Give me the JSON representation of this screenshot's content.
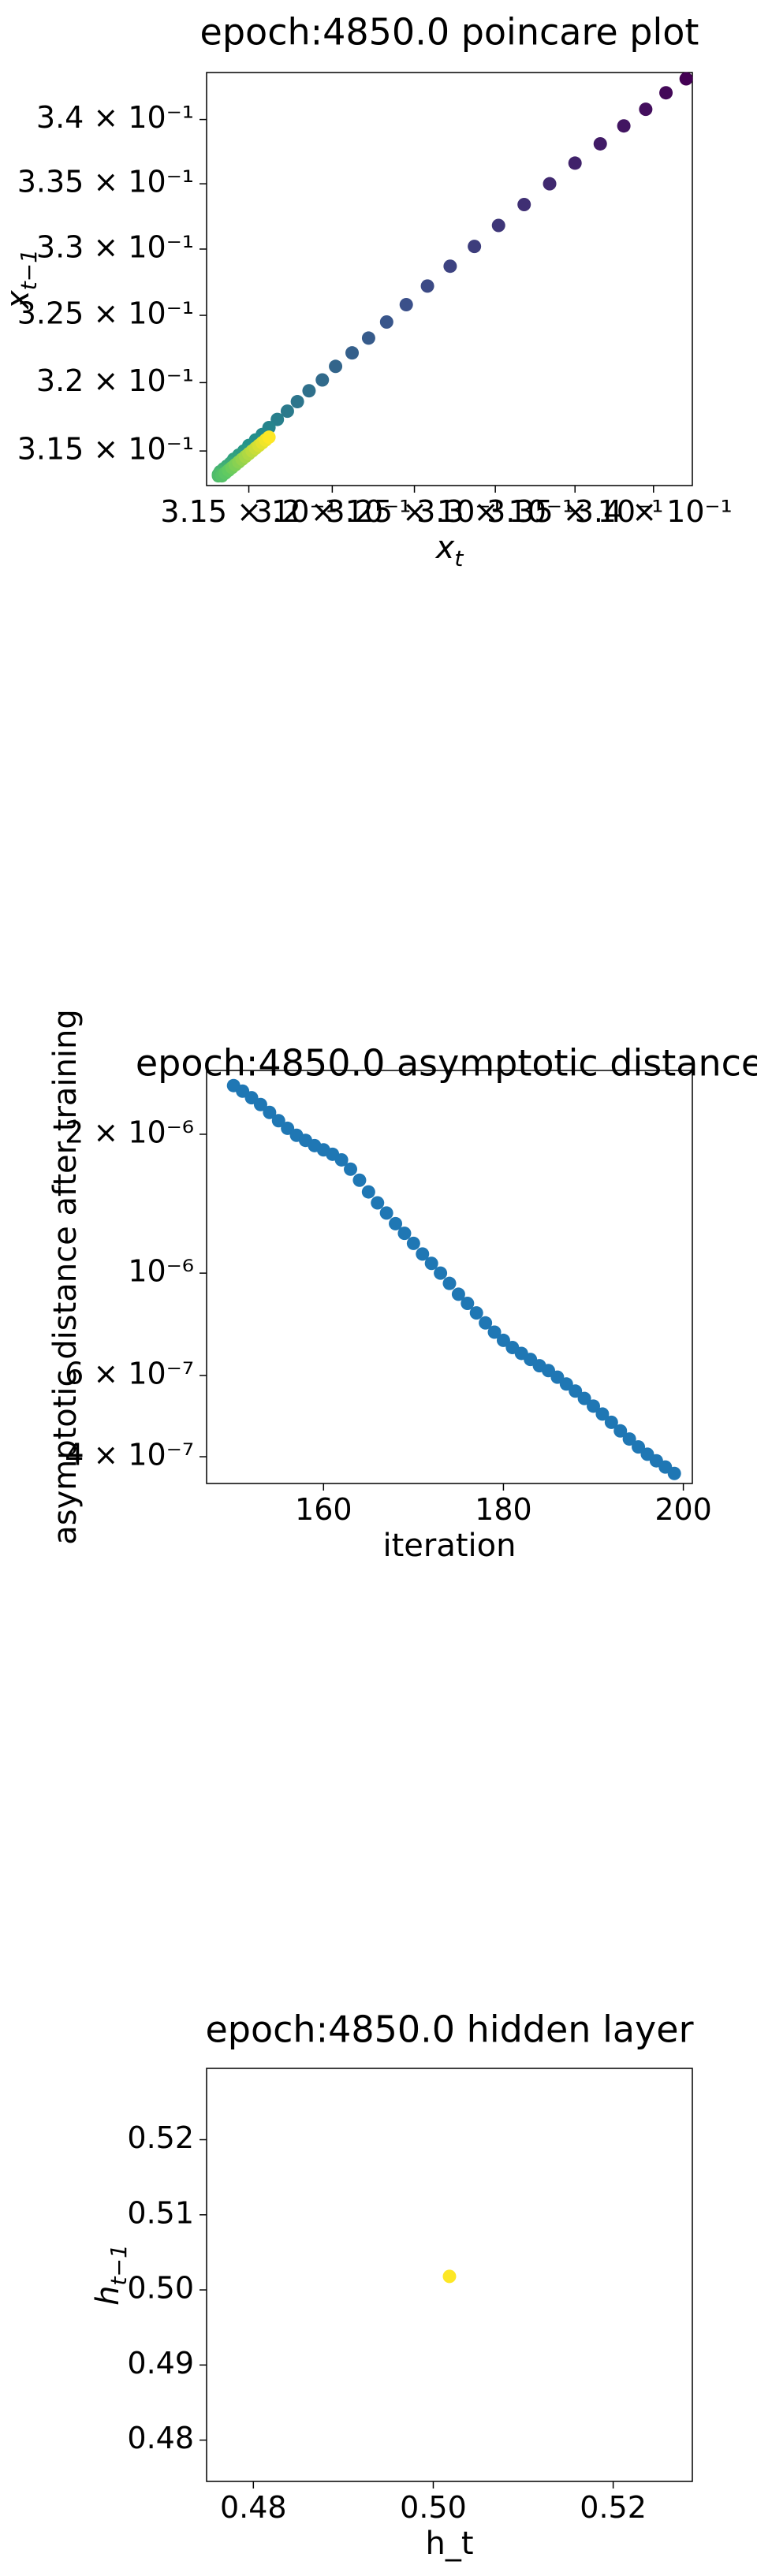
{
  "chart_data": [
    {
      "type": "scatter",
      "title": "epoch:4850.0 poincare plot",
      "xlabel": "x",
      "xlabel_sub": "t",
      "ylabel": "x",
      "ylabel_sub": "t−1",
      "x_scale": "log",
      "y_scale": "log",
      "xlim": [
        0.3125,
        0.3425
      ],
      "ylim": [
        0.3125,
        0.3437
      ],
      "x_tick_values": [
        0.315,
        0.32,
        0.325,
        0.33,
        0.335,
        0.34
      ],
      "x_tick_labels": [
        "3.15 × 10⁻¹",
        "3.2 × 10⁻¹",
        "3.25 × 10⁻¹",
        "3.3 × 10⁻¹",
        "3.35 × 10⁻¹",
        "3.4 × 10⁻¹"
      ],
      "y_tick_values": [
        0.315,
        0.32,
        0.325,
        0.33,
        0.335,
        0.34
      ],
      "y_tick_labels": [
        "3.15 × 10⁻¹",
        "3.2 × 10⁻¹",
        "3.25 × 10⁻¹",
        "3.3 × 10⁻¹",
        "3.35 × 10⁻¹",
        "3.4 × 10⁻¹"
      ],
      "colormap": "viridis",
      "grid": false,
      "points": [
        {
          "x": 0.3421,
          "y": 0.3432
        },
        {
          "x": 0.3408,
          "y": 0.3421
        },
        {
          "x": 0.3395,
          "y": 0.3408
        },
        {
          "x": 0.3381,
          "y": 0.3395
        },
        {
          "x": 0.3366,
          "y": 0.3381
        },
        {
          "x": 0.335,
          "y": 0.3366
        },
        {
          "x": 0.3334,
          "y": 0.335
        },
        {
          "x": 0.3318,
          "y": 0.3334
        },
        {
          "x": 0.3302,
          "y": 0.3318
        },
        {
          "x": 0.3287,
          "y": 0.3302
        },
        {
          "x": 0.3272,
          "y": 0.3287
        },
        {
          "x": 0.3258,
          "y": 0.3272
        },
        {
          "x": 0.3245,
          "y": 0.3258
        },
        {
          "x": 0.3233,
          "y": 0.3245
        },
        {
          "x": 0.3222,
          "y": 0.3233
        },
        {
          "x": 0.3212,
          "y": 0.3222
        },
        {
          "x": 0.3202,
          "y": 0.3212
        },
        {
          "x": 0.3194,
          "y": 0.3202
        },
        {
          "x": 0.3186,
          "y": 0.3194
        },
        {
          "x": 0.3179,
          "y": 0.3186
        },
        {
          "x": 0.3173,
          "y": 0.3179
        },
        {
          "x": 0.3167,
          "y": 0.3173
        },
        {
          "x": 0.3162,
          "y": 0.3167
        },
        {
          "x": 0.3158,
          "y": 0.3162
        },
        {
          "x": 0.3154,
          "y": 0.3158
        },
        {
          "x": 0.315,
          "y": 0.3154
        },
        {
          "x": 0.3147,
          "y": 0.315
        },
        {
          "x": 0.3144,
          "y": 0.3147
        },
        {
          "x": 0.3141,
          "y": 0.3144
        },
        {
          "x": 0.3139,
          "y": 0.3141
        },
        {
          "x": 0.3137,
          "y": 0.3139
        },
        {
          "x": 0.3135,
          "y": 0.3137
        },
        {
          "x": 0.3133,
          "y": 0.3135
        },
        {
          "x": 0.3132,
          "y": 0.3133
        },
        {
          "x": 0.3132,
          "y": 0.3132
        },
        {
          "x": 0.3134,
          "y": 0.3132
        },
        {
          "x": 0.3136,
          "y": 0.3134
        },
        {
          "x": 0.3138,
          "y": 0.3136
        },
        {
          "x": 0.314,
          "y": 0.3138
        },
        {
          "x": 0.3142,
          "y": 0.314
        },
        {
          "x": 0.3144,
          "y": 0.3142
        },
        {
          "x": 0.3146,
          "y": 0.3144
        },
        {
          "x": 0.3148,
          "y": 0.3146
        },
        {
          "x": 0.315,
          "y": 0.3148
        },
        {
          "x": 0.3152,
          "y": 0.315
        },
        {
          "x": 0.3154,
          "y": 0.3152
        },
        {
          "x": 0.3156,
          "y": 0.3154
        },
        {
          "x": 0.3158,
          "y": 0.3156
        },
        {
          "x": 0.316,
          "y": 0.3158
        },
        {
          "x": 0.3162,
          "y": 0.316
        }
      ]
    },
    {
      "type": "scatter",
      "title": "epoch:4850.0 asymptotic distance",
      "xlabel": "iteration",
      "ylabel": "asymptotic distance after training",
      "y_scale": "log",
      "xlim": [
        147,
        201
      ],
      "ylim": [
        3.5e-07,
        2.75e-06
      ],
      "x_tick_values": [
        160,
        180,
        200
      ],
      "x_tick_labels": [
        "160",
        "180",
        "200"
      ],
      "y_tick_values": [
        4e-07,
        6e-07,
        1e-06,
        2e-06
      ],
      "y_tick_labels": [
        "4 × 10⁻⁷",
        "6 × 10⁻⁷",
        "10⁻⁶",
        "2 × 10⁻⁶"
      ],
      "color": "#1f77b4",
      "grid": false,
      "x": [
        150,
        151,
        152,
        153,
        154,
        155,
        156,
        157,
        158,
        159,
        160,
        161,
        162,
        163,
        164,
        165,
        166,
        167,
        168,
        169,
        170,
        171,
        172,
        173,
        174,
        175,
        176,
        177,
        178,
        179,
        180,
        181,
        182,
        183,
        184,
        185,
        186,
        187,
        188,
        189,
        190,
        191,
        192,
        193,
        194,
        195,
        196,
        197,
        198,
        199
      ],
      "y": [
        2.55e-06,
        2.48e-06,
        2.4e-06,
        2.32e-06,
        2.23e-06,
        2.14e-06,
        2.06e-06,
        1.99e-06,
        1.94e-06,
        1.89e-06,
        1.85e-06,
        1.81e-06,
        1.76e-06,
        1.68e-06,
        1.59e-06,
        1.5e-06,
        1.42e-06,
        1.35e-06,
        1.28e-06,
        1.22e-06,
        1.16e-06,
        1.1e-06,
        1.05e-06,
        1e-06,
        9.5e-07,
        9e-07,
        8.6e-07,
        8.2e-07,
        7.8e-07,
        7.45e-07,
        7.15e-07,
        6.9e-07,
        6.7e-07,
        6.5e-07,
        6.3e-07,
        6.15e-07,
        5.95e-07,
        5.75e-07,
        5.55e-07,
        5.35e-07,
        5.15e-07,
        4.95e-07,
        4.75e-07,
        4.55e-07,
        4.37e-07,
        4.2e-07,
        4.05e-07,
        3.92e-07,
        3.8e-07,
        3.68e-07
      ]
    },
    {
      "type": "scatter",
      "title": "epoch:4850.0 hidden layer",
      "xlabel": "h_t",
      "ylabel": "h",
      "ylabel_sub": "t−1",
      "xlim": [
        0.4748,
        0.5288
      ],
      "ylim": [
        0.4745,
        0.5295
      ],
      "x_tick_values": [
        0.48,
        0.5,
        0.52
      ],
      "x_tick_labels": [
        "0.48",
        "0.50",
        "0.52"
      ],
      "y_tick_values": [
        0.48,
        0.49,
        0.5,
        0.51,
        0.52
      ],
      "y_tick_labels": [
        "0.48",
        "0.49",
        "0.50",
        "0.51",
        "0.52"
      ],
      "color": "#fde725",
      "grid": false,
      "points": [
        {
          "x": 0.5018,
          "y": 0.5018
        }
      ]
    }
  ]
}
